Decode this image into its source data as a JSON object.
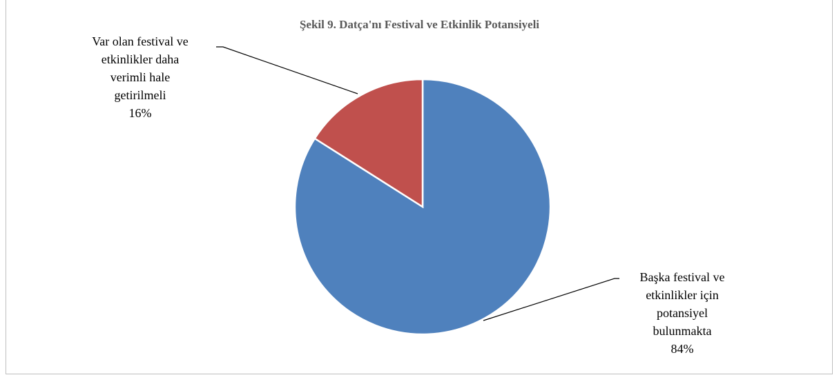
{
  "chart_data": {
    "type": "pie",
    "title": "Şekil 9. Datça'nı Festival  ve Etkinlik Potansiyeli",
    "slices": [
      {
        "name": "Başka festival ve etkinlikler için potansiyel bulunmakta",
        "label_lines": [
          "Başka festival ve",
          "etkinlikler  için",
          "potansiyel",
          "bulunmakta"
        ],
        "value": 84,
        "percent_label": "84%",
        "color": "#4f81bd"
      },
      {
        "name": "Var olan festival ve etkinlikler daha verimli hale getirilmeli",
        "label_lines": [
          "Var  olan festival ve",
          "etkinlikler  daha",
          "verimli  hale",
          "getirilmeli"
        ],
        "value": 16,
        "percent_label": "16%",
        "color": "#c0504d"
      }
    ],
    "start_angle_deg": 0,
    "direction": "clockwise",
    "legend": "none",
    "data_labels": "outside with leader lines"
  }
}
